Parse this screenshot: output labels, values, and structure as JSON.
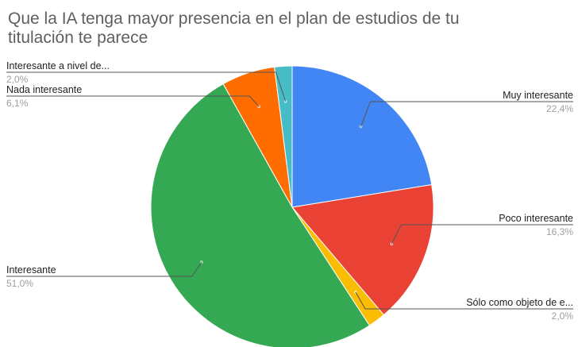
{
  "chart_data": {
    "type": "pie",
    "title_lines": [
      "Que la IA tenga mayor presencia en el plan de estudios de tu",
      "titulación te parece"
    ],
    "slices": [
      {
        "label": "Muy interesante",
        "value": 22.4,
        "value_label": "22,4%",
        "color": "#4285f4",
        "label_side": "right"
      },
      {
        "label": "Poco interesante",
        "value": 16.3,
        "value_label": "16,3%",
        "color": "#ea4335",
        "label_side": "right"
      },
      {
        "label": "Sólo como objeto de e...",
        "value": 2.0,
        "value_label": "2,0%",
        "color": "#fbbc04",
        "label_side": "right"
      },
      {
        "label": "Interesante",
        "value": 51.0,
        "value_label": "51,0%",
        "color": "#34a853",
        "label_side": "left"
      },
      {
        "label": "Nada interesante",
        "value": 6.1,
        "value_label": "6,1%",
        "color": "#ff6d01",
        "label_side": "left"
      },
      {
        "label": "Interesante a nivel de...",
        "value": 2.0,
        "value_label": "2,0%",
        "color": "#46bdc6",
        "label_side": "left"
      }
    ],
    "legend": "none"
  }
}
